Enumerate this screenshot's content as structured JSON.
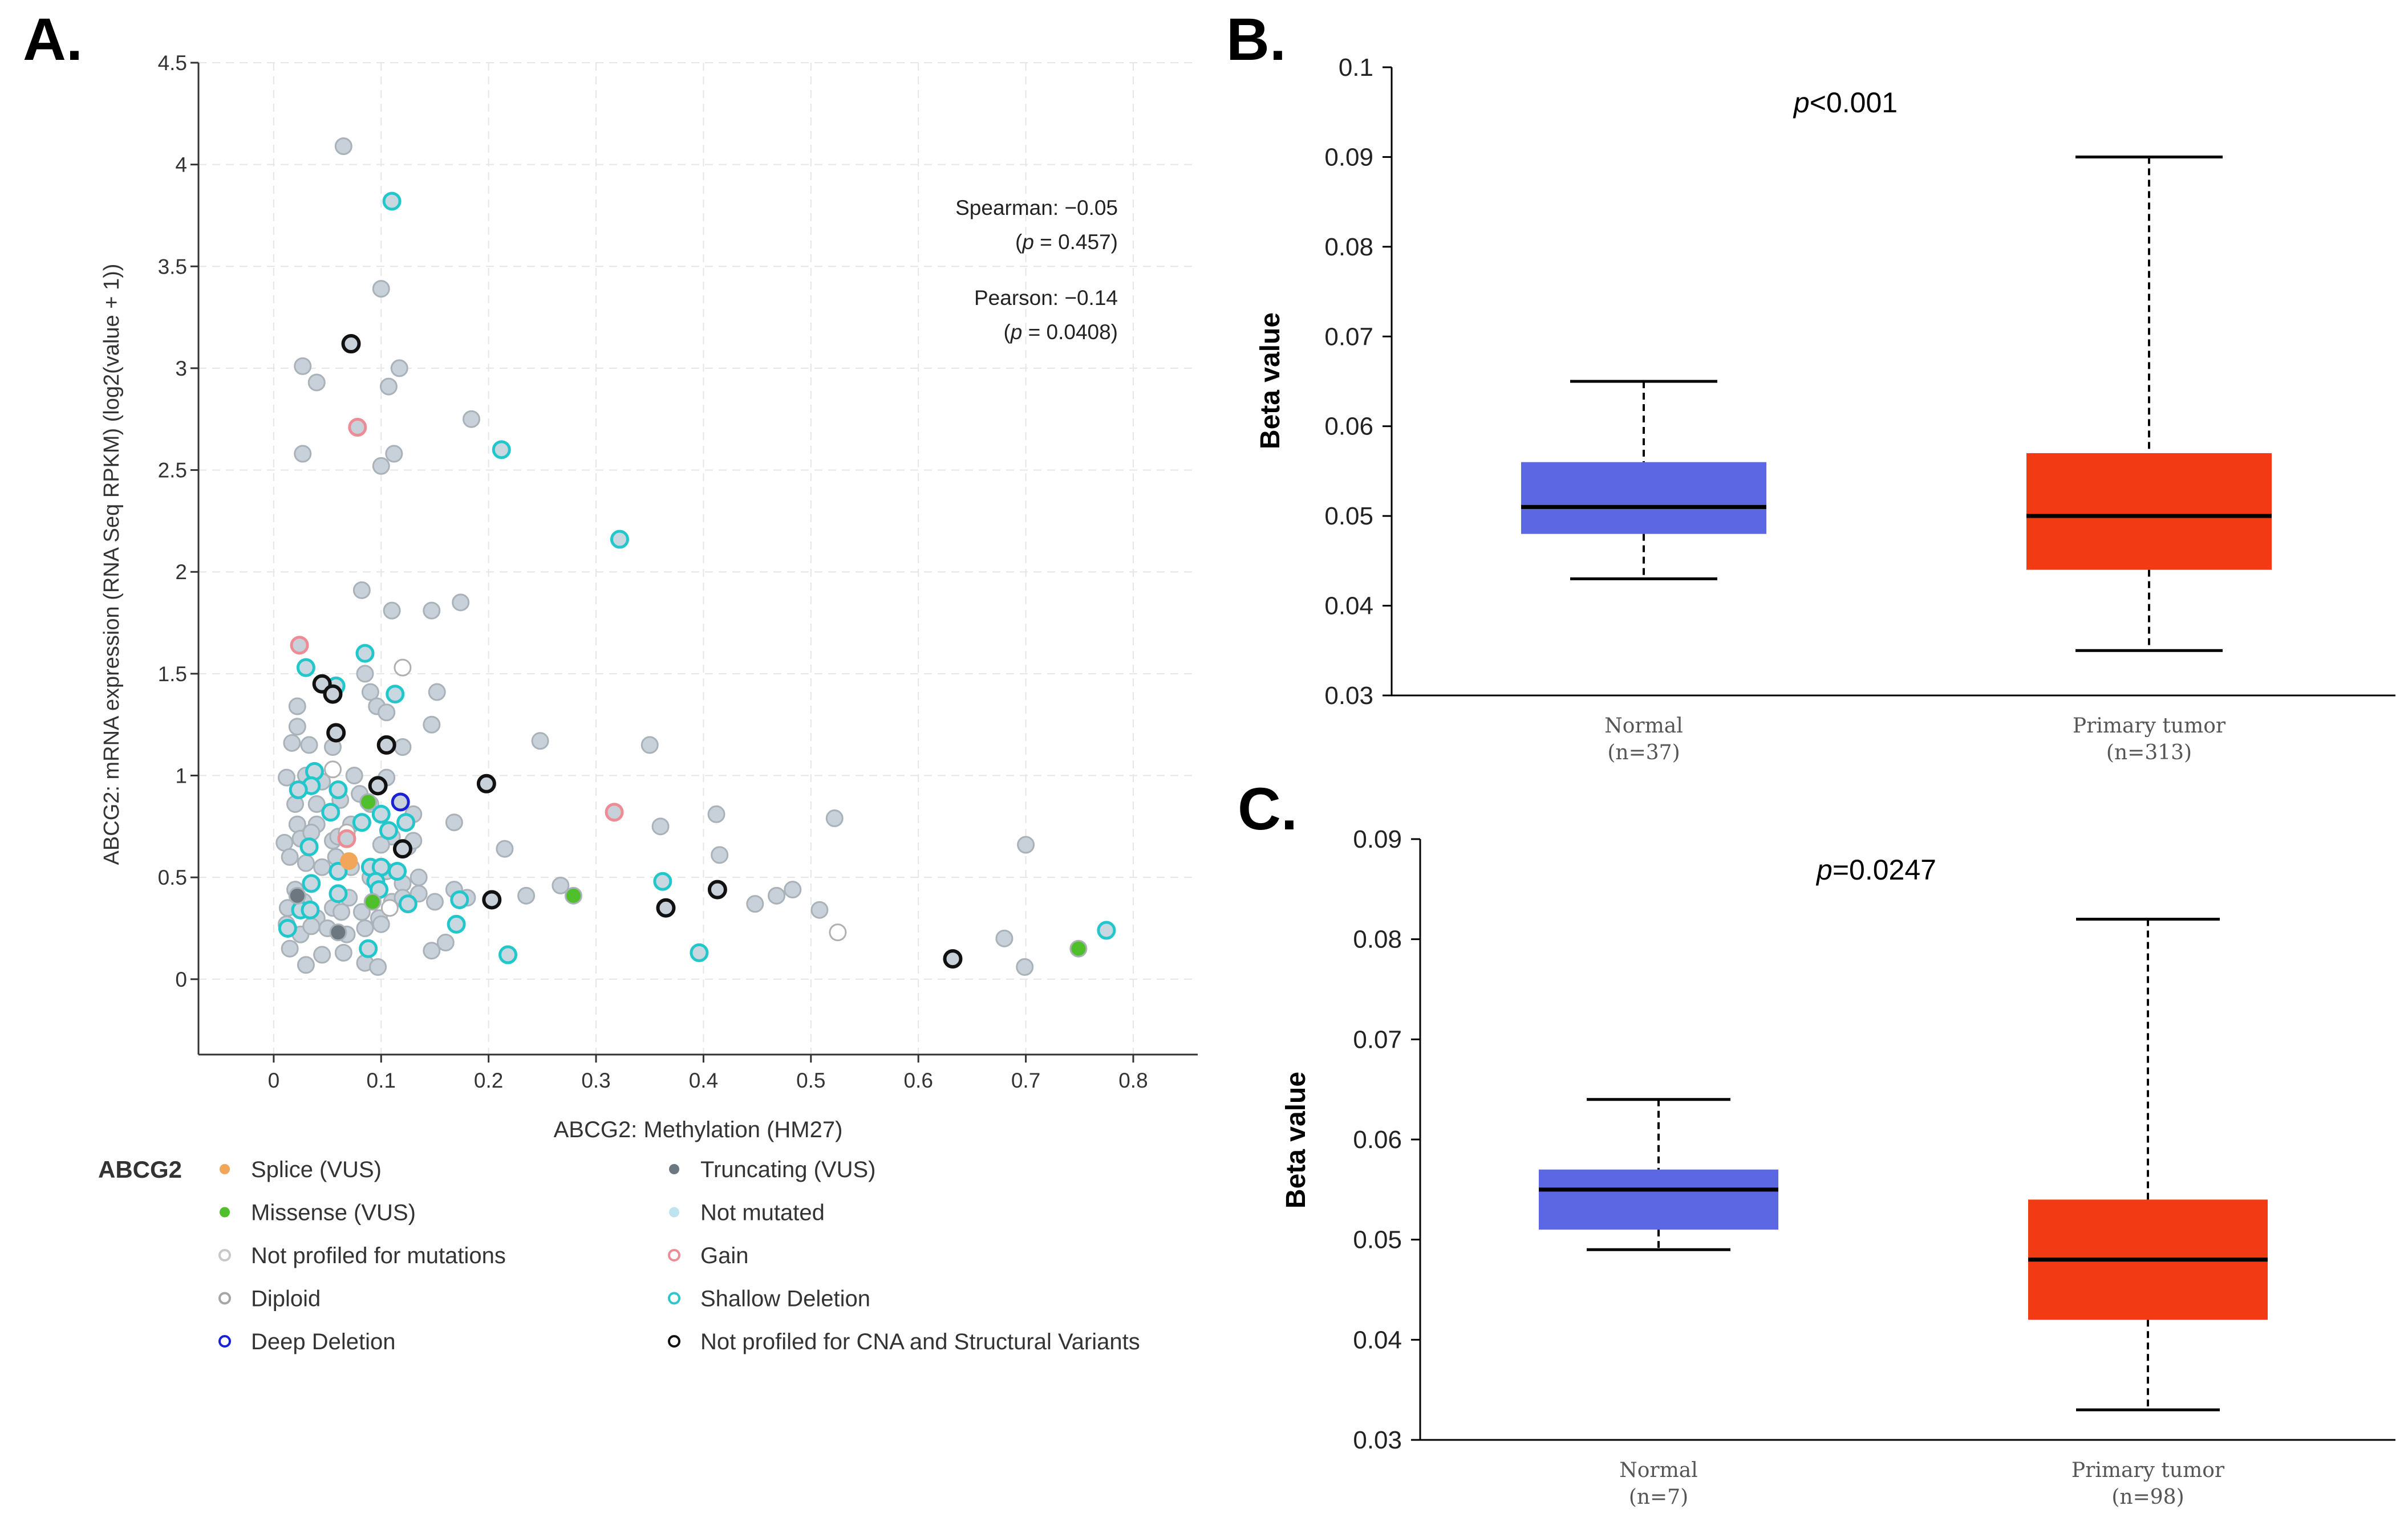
{
  "panels": {
    "a": "A.",
    "b": "B.",
    "c": "C."
  },
  "chart_data": [
    {
      "type": "scatter",
      "panel": "A.",
      "xlabel": "ABCG2: Methylation (HM27)",
      "ylabel": "ABCG2: mRNA expression (RNA Seq RPKM) (log2(value + 1))",
      "xlim": [
        -0.07,
        0.86
      ],
      "ylim": [
        -0.37,
        4.5
      ],
      "xticks": [
        "0",
        "0.1",
        "0.2",
        "0.3",
        "0.4",
        "0.5",
        "0.6",
        "0.7",
        "0.8"
      ],
      "xtick_values": [
        0,
        0.1,
        0.2,
        0.3,
        0.4,
        0.5,
        0.6,
        0.7,
        0.8
      ],
      "yticks": [
        "0",
        "0.5",
        "1",
        "1.5",
        "2",
        "2.5",
        "3",
        "3.5",
        "4",
        "4.5"
      ],
      "ytick_values": [
        0,
        0.5,
        1,
        1.5,
        2,
        2.5,
        3,
        3.5,
        4,
        4.5
      ],
      "grid": true,
      "annotations": {
        "spearman": "Spearman: −0.05",
        "spearman_p": "p",
        "spearman_p_rest": " = 0.457)",
        "pearson": "Pearson: −0.14",
        "pearson_p": "p",
        "pearson_p_rest": " = 0.0408)"
      },
      "legend": {
        "title": "ABCG2",
        "entries": [
          {
            "label": "Splice (VUS)",
            "fill": "#f2a65a",
            "stroke": "#f2a65a",
            "style": "dot"
          },
          {
            "label": "Truncating (VUS)",
            "fill": "#6c7780",
            "stroke": "#6c7780",
            "style": "dot"
          },
          {
            "label": "Missense (VUS)",
            "fill": "#4fc02c",
            "stroke": "#4fc02c",
            "style": "dot"
          },
          {
            "label": "Not mutated",
            "fill": "#bfe3ef",
            "stroke": "#bfe3ef",
            "style": "dot"
          },
          {
            "label": "Not profiled for mutations",
            "fill": "#ffffff",
            "stroke": "#c8c8c8",
            "style": "ring"
          },
          {
            "label": "Gain",
            "fill": "#ffffff",
            "stroke": "#ee8c96",
            "style": "ring"
          },
          {
            "label": "Diploid",
            "fill": "#ffffff",
            "stroke": "#a6a6a6",
            "style": "ring"
          },
          {
            "label": "Shallow Deletion",
            "fill": "#ffffff",
            "stroke": "#2cc7cc",
            "style": "ring"
          },
          {
            "label": "Deep Deletion",
            "fill": "#ffffff",
            "stroke": "#1a20d6",
            "style": "ring"
          },
          {
            "label": "Not profiled for CNA and Structural Variants",
            "fill": "#ffffff",
            "stroke": "#111111",
            "style": "ring"
          }
        ]
      },
      "colors": {
        "diploid_fill": "#c8d1d9",
        "diploid_stroke": "#a9b2b8",
        "shallow_fill": "#c8d7e0",
        "shallow_stroke": "#22c7cc",
        "black_stroke": "#111111",
        "gain_stroke": "#ee8c96",
        "deep_stroke": "#1a20d6",
        "missense_fill": "#4fc02c",
        "splice_fill": "#f2a65a",
        "trunc_fill": "#6c7780",
        "notprof_fill": "#ffffff",
        "notprof_stroke": "#b0b0b0"
      },
      "points": {
        "diploid": [
          [
            0.065,
            4.09
          ],
          [
            0.1,
            3.39
          ],
          [
            0.027,
            3.01
          ],
          [
            0.117,
            3.0
          ],
          [
            0.04,
            2.93
          ],
          [
            0.107,
            2.91
          ],
          [
            0.184,
            2.75
          ],
          [
            0.027,
            2.58
          ],
          [
            0.112,
            2.58
          ],
          [
            0.1,
            2.52
          ],
          [
            0.082,
            1.91
          ],
          [
            0.174,
            1.85
          ],
          [
            0.11,
            1.81
          ],
          [
            0.147,
            1.81
          ],
          [
            0.085,
            1.5
          ],
          [
            0.152,
            1.41
          ],
          [
            0.09,
            1.41
          ],
          [
            0.022,
            1.34
          ],
          [
            0.096,
            1.34
          ],
          [
            0.105,
            1.31
          ],
          [
            0.147,
            1.25
          ],
          [
            0.022,
            1.24
          ],
          [
            0.017,
            1.16
          ],
          [
            0.033,
            1.15
          ],
          [
            0.055,
            1.14
          ],
          [
            0.12,
            1.14
          ],
          [
            0.248,
            1.17
          ],
          [
            0.35,
            1.15
          ],
          [
            0.012,
            0.99
          ],
          [
            0.03,
            1.0
          ],
          [
            0.045,
            0.97
          ],
          [
            0.075,
            1.0
          ],
          [
            0.105,
            0.99
          ],
          [
            0.02,
            0.86
          ],
          [
            0.04,
            0.86
          ],
          [
            0.062,
            0.88
          ],
          [
            0.08,
            0.91
          ],
          [
            0.09,
            0.86
          ],
          [
            0.13,
            0.81
          ],
          [
            0.04,
            0.76
          ],
          [
            0.022,
            0.76
          ],
          [
            0.01,
            0.67
          ],
          [
            0.025,
            0.69
          ],
          [
            0.035,
            0.72
          ],
          [
            0.055,
            0.68
          ],
          [
            0.06,
            0.7
          ],
          [
            0.072,
            0.76
          ],
          [
            0.11,
            0.7
          ],
          [
            0.125,
            0.65
          ],
          [
            0.1,
            0.66
          ],
          [
            0.13,
            0.68
          ],
          [
            0.168,
            0.77
          ],
          [
            0.215,
            0.64
          ],
          [
            0.36,
            0.75
          ],
          [
            0.412,
            0.81
          ],
          [
            0.415,
            0.61
          ],
          [
            0.522,
            0.79
          ],
          [
            0.015,
            0.6
          ],
          [
            0.03,
            0.57
          ],
          [
            0.045,
            0.55
          ],
          [
            0.058,
            0.6
          ],
          [
            0.072,
            0.55
          ],
          [
            0.09,
            0.5
          ],
          [
            0.105,
            0.53
          ],
          [
            0.12,
            0.47
          ],
          [
            0.135,
            0.5
          ],
          [
            0.013,
            0.35
          ],
          [
            0.02,
            0.44
          ],
          [
            0.028,
            0.38
          ],
          [
            0.04,
            0.3
          ],
          [
            0.055,
            0.35
          ],
          [
            0.063,
            0.33
          ],
          [
            0.07,
            0.4
          ],
          [
            0.082,
            0.33
          ],
          [
            0.098,
            0.3
          ],
          [
            0.11,
            0.38
          ],
          [
            0.12,
            0.4
          ],
          [
            0.135,
            0.42
          ],
          [
            0.15,
            0.38
          ],
          [
            0.168,
            0.44
          ],
          [
            0.18,
            0.4
          ],
          [
            0.012,
            0.27
          ],
          [
            0.025,
            0.22
          ],
          [
            0.035,
            0.26
          ],
          [
            0.05,
            0.25
          ],
          [
            0.068,
            0.22
          ],
          [
            0.085,
            0.25
          ],
          [
            0.1,
            0.27
          ],
          [
            0.015,
            0.15
          ],
          [
            0.045,
            0.12
          ],
          [
            0.065,
            0.13
          ],
          [
            0.03,
            0.07
          ],
          [
            0.085,
            0.08
          ],
          [
            0.097,
            0.06
          ],
          [
            0.147,
            0.14
          ],
          [
            0.16,
            0.18
          ],
          [
            0.235,
            0.41
          ],
          [
            0.267,
            0.46
          ],
          [
            0.448,
            0.37
          ],
          [
            0.468,
            0.41
          ],
          [
            0.483,
            0.44
          ],
          [
            0.508,
            0.34
          ],
          [
            0.68,
            0.2
          ],
          [
            0.7,
            0.66
          ],
          [
            0.699,
            0.06
          ]
        ],
        "not_profiled": [
          [
            0.12,
            1.53
          ],
          [
            0.055,
            1.03
          ],
          [
            0.525,
            0.23
          ],
          [
            0.068,
            0.72
          ],
          [
            0.108,
            0.35
          ]
        ],
        "shallow": [
          [
            0.11,
            3.82
          ],
          [
            0.212,
            2.6
          ],
          [
            0.322,
            2.16
          ],
          [
            0.085,
            1.6
          ],
          [
            0.03,
            1.53
          ],
          [
            0.058,
            1.44
          ],
          [
            0.113,
            1.4
          ],
          [
            0.038,
            1.02
          ],
          [
            0.035,
            0.95
          ],
          [
            0.06,
            0.93
          ],
          [
            0.023,
            0.93
          ],
          [
            0.053,
            0.82
          ],
          [
            0.082,
            0.77
          ],
          [
            0.1,
            0.81
          ],
          [
            0.123,
            0.77
          ],
          [
            0.033,
            0.65
          ],
          [
            0.107,
            0.73
          ],
          [
            0.09,
            0.55
          ],
          [
            0.1,
            0.55
          ],
          [
            0.115,
            0.53
          ],
          [
            0.06,
            0.53
          ],
          [
            0.095,
            0.48
          ],
          [
            0.035,
            0.47
          ],
          [
            0.06,
            0.42
          ],
          [
            0.025,
            0.34
          ],
          [
            0.034,
            0.34
          ],
          [
            0.125,
            0.37
          ],
          [
            0.173,
            0.39
          ],
          [
            0.098,
            0.44
          ],
          [
            0.013,
            0.25
          ],
          [
            0.17,
            0.27
          ],
          [
            0.088,
            0.15
          ],
          [
            0.218,
            0.12
          ],
          [
            0.362,
            0.48
          ],
          [
            0.396,
            0.13
          ],
          [
            0.775,
            0.24
          ]
        ],
        "black": [
          [
            0.072,
            3.12
          ],
          [
            0.045,
            1.45
          ],
          [
            0.055,
            1.4
          ],
          [
            0.058,
            1.21
          ],
          [
            0.105,
            1.15
          ],
          [
            0.198,
            0.96
          ],
          [
            0.097,
            0.95
          ],
          [
            0.12,
            0.64
          ],
          [
            0.203,
            0.39
          ],
          [
            0.365,
            0.35
          ],
          [
            0.413,
            0.44
          ],
          [
            0.632,
            0.1
          ]
        ],
        "gain": [
          [
            0.078,
            2.71
          ],
          [
            0.024,
            1.64
          ],
          [
            0.317,
            0.82
          ],
          [
            0.068,
            0.69
          ]
        ],
        "deep": [
          [
            0.118,
            0.87
          ]
        ],
        "missense": [
          [
            0.088,
            0.87
          ],
          [
            0.092,
            0.38
          ],
          [
            0.279,
            0.41
          ],
          [
            0.749,
            0.15
          ]
        ],
        "splice": [
          [
            0.07,
            0.58
          ]
        ],
        "trunc": [
          [
            0.022,
            0.41
          ],
          [
            0.06,
            0.23
          ]
        ]
      }
    },
    {
      "type": "box",
      "panel": "B.",
      "title_p": "p",
      "title_rest": "<0.001",
      "ylabel": "Beta value",
      "ylim": [
        0.03,
        0.1
      ],
      "yticks": [
        "0.03",
        "0.04",
        "0.05",
        "0.06",
        "0.07",
        "0.08",
        "0.09",
        "0.1"
      ],
      "ytick_values": [
        0.03,
        0.04,
        0.05,
        0.06,
        0.07,
        0.08,
        0.09,
        0.1
      ],
      "grid": false,
      "series": [
        {
          "name": "Normal",
          "n": "(n=37)",
          "min": 0.043,
          "q1": 0.048,
          "median": 0.051,
          "q3": 0.056,
          "max": 0.065,
          "color": "#5b67e3"
        },
        {
          "name": "Primary tumor",
          "n": "(n=313)",
          "min": 0.035,
          "q1": 0.044,
          "median": 0.05,
          "q3": 0.057,
          "max": 0.09,
          "color": "#f23b14"
        }
      ]
    },
    {
      "type": "box",
      "panel": "C.",
      "title_p": "p",
      "title_rest": "=0.0247",
      "ylabel": "Beta value",
      "ylim": [
        0.03,
        0.09
      ],
      "yticks": [
        "0.03",
        "0.04",
        "0.05",
        "0.06",
        "0.07",
        "0.08",
        "0.09"
      ],
      "ytick_values": [
        0.03,
        0.04,
        0.05,
        0.06,
        0.07,
        0.08,
        0.09
      ],
      "grid": false,
      "series": [
        {
          "name": "Normal",
          "n": "(n=7)",
          "min": 0.049,
          "q1": 0.051,
          "median": 0.055,
          "q3": 0.057,
          "max": 0.064,
          "color": "#5b67e3"
        },
        {
          "name": "Primary tumor",
          "n": "(n=98)",
          "min": 0.033,
          "q1": 0.042,
          "median": 0.048,
          "q3": 0.054,
          "max": 0.082,
          "color": "#f23b14"
        }
      ]
    }
  ]
}
